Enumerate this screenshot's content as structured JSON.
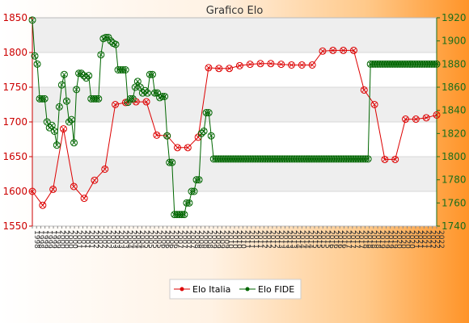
{
  "chart_data": {
    "type": "line",
    "title": "Grafico Elo",
    "legend_position": "bottom-center",
    "grid": true,
    "series": [
      {
        "name": "Elo Italia",
        "axis": "left",
        "color": "#dd0000",
        "values": [
          1600,
          1580,
          1603,
          1690,
          1607,
          1590,
          1616,
          1632,
          1725,
          1728,
          1729,
          1729,
          1681,
          1680,
          1663,
          1663,
          1678,
          1778,
          1777,
          1777,
          1781,
          1783,
          1784,
          1784,
          1783,
          1782,
          1782,
          1782,
          1802,
          1803,
          1803,
          1803,
          1746,
          1725,
          1646,
          1646,
          1704,
          1704,
          1706,
          1710
        ]
      },
      {
        "name": "Elo FIDE",
        "axis": "right",
        "color": "#006600",
        "values": [
          1918,
          1887,
          1880,
          1850,
          1850,
          1850,
          1830,
          1825,
          1827,
          1822,
          1810,
          1843,
          1862,
          1871,
          1848,
          1830,
          1832,
          1812,
          1858,
          1872,
          1872,
          1870,
          1868,
          1870,
          1850,
          1850,
          1850,
          1850,
          1888,
          1902,
          1903,
          1903,
          1900,
          1898,
          1897,
          1875,
          1875,
          1875,
          1875,
          1847,
          1850,
          1850,
          1860,
          1865,
          1860,
          1855,
          1857,
          1855,
          1871,
          1871,
          1855,
          1855,
          1851,
          1852,
          1852,
          1818,
          1795,
          1795,
          1750,
          1750,
          1750,
          1750,
          1750,
          1760,
          1760,
          1770,
          1770,
          1780,
          1780,
          1820,
          1822,
          1838,
          1838,
          1818,
          1798,
          1798,
          1798,
          1798,
          1798,
          1798,
          1798,
          1798,
          1798,
          1798,
          1798,
          1798,
          1798,
          1798,
          1798,
          1798,
          1798,
          1798,
          1798,
          1798,
          1798,
          1798,
          1798,
          1798,
          1798,
          1798,
          1798,
          1798,
          1798,
          1798,
          1798,
          1798,
          1798,
          1798,
          1798,
          1798,
          1798,
          1798,
          1798,
          1798,
          1798,
          1798,
          1798,
          1798,
          1798,
          1798,
          1798,
          1798,
          1798,
          1798,
          1798,
          1798,
          1798,
          1798,
          1798,
          1798,
          1798,
          1798,
          1798,
          1798,
          1798,
          1798,
          1798,
          1798,
          1880,
          1880,
          1880,
          1880,
          1880,
          1880,
          1880,
          1880,
          1880,
          1880,
          1880,
          1880,
          1880,
          1880,
          1880,
          1880,
          1880,
          1880,
          1880,
          1880,
          1880,
          1880,
          1880,
          1880,
          1880,
          1880,
          1880,
          1880
        ]
      }
    ],
    "y_left": {
      "range": [
        1550,
        1850
      ],
      "ticks": [
        "1550",
        "1600",
        "1650",
        "1700",
        "1750",
        "1800",
        "1850"
      ],
      "color": "#cc0000"
    },
    "y_right": {
      "range": [
        1740,
        1920
      ],
      "ticks": [
        "1740",
        "1760",
        "1780",
        "1800",
        "1820",
        "1840",
        "1860",
        "1880",
        "1900",
        "1920"
      ],
      "color": "#1a6e1a"
    },
    "x_tick_labels": [
      "1998",
      "1998",
      "1999",
      "1999",
      "1999",
      "1999",
      "2000",
      "2000",
      "2000",
      "2000",
      "2001",
      "2001",
      "2001",
      "2001",
      "2002",
      "2002",
      "2002",
      "2002",
      "2003",
      "2003",
      "2003",
      "2003",
      "2004",
      "2004",
      "2004",
      "2004",
      "2005",
      "2005",
      "2005",
      "2005",
      "2006",
      "2006",
      "2006",
      "2006",
      "2007",
      "2007",
      "2007",
      "2007",
      "2008",
      "2008",
      "2008",
      "2008",
      "2009",
      "2009",
      "2009",
      "2009",
      "2010",
      "2010",
      "2010",
      "2010",
      "2011",
      "2011",
      "2011",
      "2011",
      "2012",
      "2012",
      "2012",
      "2012",
      "2013",
      "2013",
      "2013",
      "2013",
      "2014",
      "2014",
      "2014",
      "2014",
      "2015",
      "2015",
      "2015",
      "2015",
      "2016",
      "2016",
      "2016",
      "2016",
      "2017",
      "2017",
      "2017",
      "2017",
      "2018",
      "2018",
      "2018",
      "2018",
      "2019",
      "2019",
      "2019",
      "2019",
      "2020",
      "2020",
      "2020",
      "2020",
      "2021",
      "2021",
      "2021",
      "2021",
      "2022",
      "2022",
      "2022"
    ]
  },
  "legend": {
    "items": [
      "Elo Italia",
      "Elo FIDE"
    ]
  }
}
